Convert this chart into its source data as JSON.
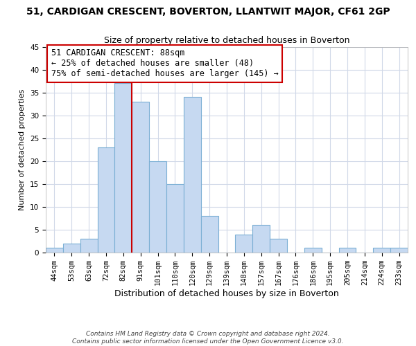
{
  "title": "51, CARDIGAN CRESCENT, BOVERTON, LLANTWIT MAJOR, CF61 2GP",
  "subtitle": "Size of property relative to detached houses in Boverton",
  "xlabel": "Distribution of detached houses by size in Boverton",
  "ylabel": "Number of detached properties",
  "bar_labels": [
    "44sqm",
    "53sqm",
    "63sqm",
    "72sqm",
    "82sqm",
    "91sqm",
    "101sqm",
    "110sqm",
    "120sqm",
    "129sqm",
    "139sqm",
    "148sqm",
    "157sqm",
    "167sqm",
    "176sqm",
    "186sqm",
    "195sqm",
    "205sqm",
    "214sqm",
    "224sqm",
    "233sqm"
  ],
  "bar_values": [
    1,
    2,
    3,
    23,
    37,
    33,
    20,
    15,
    34,
    8,
    0,
    4,
    6,
    3,
    0,
    1,
    0,
    1,
    0,
    1,
    1
  ],
  "bar_color": "#c6d9f1",
  "bar_edge_color": "#7bafd4",
  "red_line_x": 4.5,
  "annotation_text": "51 CARDIGAN CRESCENT: 88sqm\n← 25% of detached houses are smaller (48)\n75% of semi-detached houses are larger (145) →",
  "annotation_box_color": "#ffffff",
  "annotation_box_edge_color": "#cc0000",
  "vline_color": "#cc0000",
  "ylim": [
    0,
    45
  ],
  "yticks": [
    0,
    5,
    10,
    15,
    20,
    25,
    30,
    35,
    40,
    45
  ],
  "footnote": "Contains HM Land Registry data © Crown copyright and database right 2024.\nContains public sector information licensed under the Open Government Licence v3.0.",
  "bg_color": "#ffffff",
  "grid_color": "#d0d8e8",
  "title_fontsize": 10,
  "subtitle_fontsize": 9,
  "xlabel_fontsize": 9,
  "ylabel_fontsize": 8,
  "tick_fontsize": 7.5,
  "annotation_fontsize": 8.5,
  "footnote_fontsize": 6.5
}
